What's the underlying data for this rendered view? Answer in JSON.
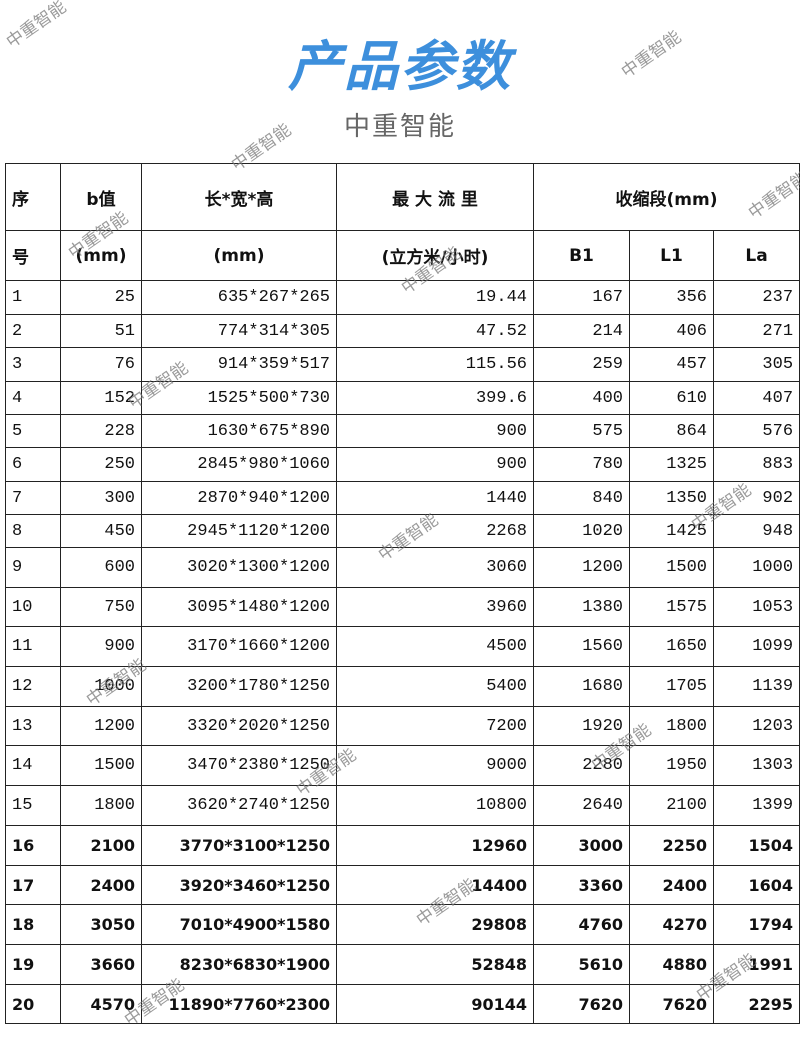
{
  "header": {
    "title": "产品参数",
    "subtitle": "中重智能"
  },
  "watermark": "中重智能",
  "table": {
    "head": [
      [
        "序",
        "b值",
        "长*宽*高",
        "最 大 流 里",
        "收缩段(mm)"
      ],
      [
        "号",
        "(mm)",
        "(mm)",
        "(立方米/小时)",
        "B1",
        "L1",
        "La"
      ]
    ],
    "rows": [
      [
        "1",
        "25",
        "635*267*265",
        "19.44",
        "167",
        "356",
        "237"
      ],
      [
        "2",
        "51",
        "774*314*305",
        "47.52",
        "214",
        "406",
        "271"
      ],
      [
        "3",
        "76",
        "914*359*517",
        "115.56",
        "259",
        "457",
        "305"
      ],
      [
        "4",
        "152",
        "1525*500*730",
        "399.6",
        "400",
        "610",
        "407"
      ],
      [
        "5",
        "228",
        "1630*675*890",
        "900",
        "575",
        "864",
        "576"
      ],
      [
        "6",
        "250",
        "2845*980*1060",
        "900",
        "780",
        "1325",
        "883"
      ],
      [
        "7",
        "300",
        "2870*940*1200",
        "1440",
        "840",
        "1350",
        "902"
      ],
      [
        "8",
        "450",
        "2945*1120*1200",
        "2268",
        "1020",
        "1425",
        "948"
      ],
      [
        "9",
        "600",
        "3020*1300*1200",
        "3060",
        "1200",
        "1500",
        "1000"
      ],
      [
        "10",
        "750",
        "3095*1480*1200",
        "3960",
        "1380",
        "1575",
        "1053"
      ],
      [
        "11",
        "900",
        "3170*1660*1200",
        "4500",
        "1560",
        "1650",
        "1099"
      ],
      [
        "12",
        "1000",
        "3200*1780*1250",
        "5400",
        "1680",
        "1705",
        "1139"
      ],
      [
        "13",
        "1200",
        "3320*2020*1250",
        "7200",
        "1920",
        "1800",
        "1203"
      ],
      [
        "14",
        "1500",
        "3470*2380*1250",
        "9000",
        "2280",
        "1950",
        "1303"
      ],
      [
        "15",
        "1800",
        "3620*2740*1250",
        "10800",
        "2640",
        "2100",
        "1399"
      ],
      [
        "16",
        "2100",
        "3770*3100*1250",
        "12960",
        "3000",
        "2250",
        "1504"
      ],
      [
        "17",
        "2400",
        "3920*3460*1250",
        "14400",
        "3360",
        "2400",
        "1604"
      ],
      [
        "18",
        "3050",
        "7010*4900*1580",
        "29808",
        "4760",
        "4270",
        "1794"
      ],
      [
        "19",
        "3660",
        "8230*6830*1900",
        "52848",
        "5610",
        "4880",
        "1991"
      ],
      [
        "20",
        "4570",
        "11890*7760*2300",
        "90144",
        "7620",
        "7620",
        "2295"
      ]
    ]
  }
}
